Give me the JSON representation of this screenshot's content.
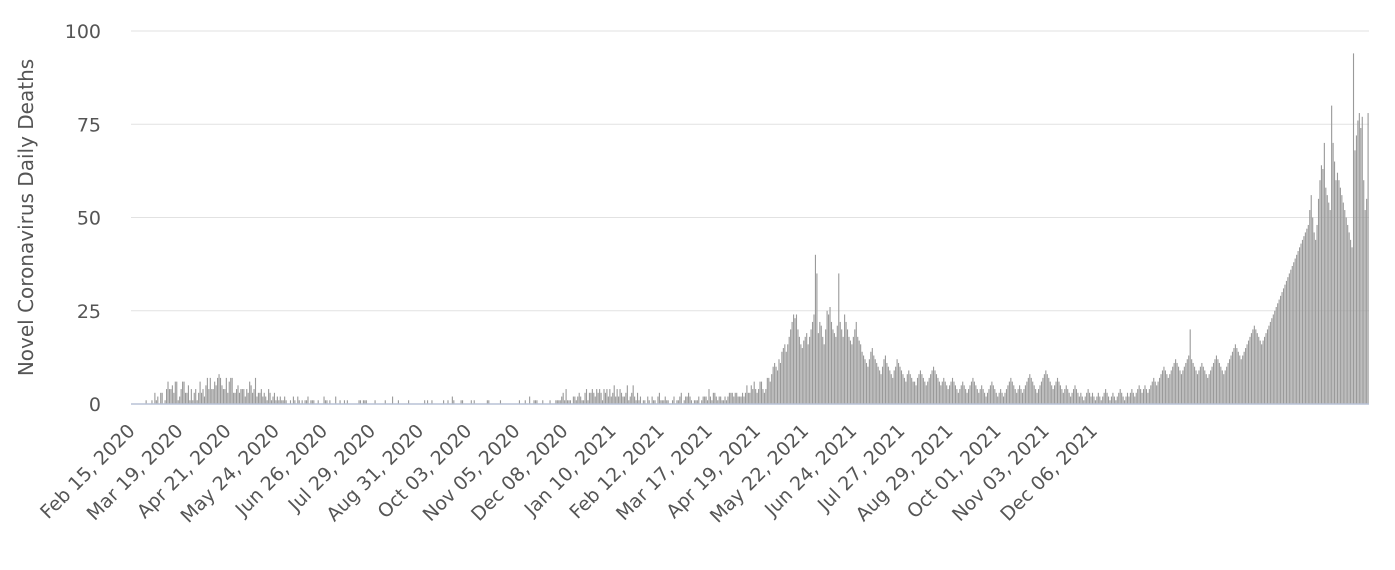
{
  "chart_data": {
    "type": "bar",
    "title": "",
    "xlabel": "",
    "ylabel": "Novel Coronavirus Daily Deaths",
    "ylim": [
      0,
      100
    ],
    "y_ticks": [
      "0",
      "25",
      "50",
      "75",
      "100"
    ],
    "x_tick_labels": [
      "Feb 15, 2020",
      "Mar 19, 2020",
      "Apr 21, 2020",
      "May 24, 2020",
      "Jun 26, 2020",
      "Jul 29, 2020",
      "Aug 31, 2020",
      "Oct 03, 2020",
      "Nov 05, 2020",
      "Dec 08, 2020",
      "Jan 10, 2021",
      "Feb 12, 2021",
      "Mar 17, 2021",
      "Apr 19, 2021",
      "May 22, 2021",
      "Jun 24, 2021",
      "Jul 27, 2021",
      "Aug 29, 2021",
      "Oct 01, 2021",
      "Nov 03, 2021",
      "Dec 06, 2021"
    ],
    "grid": true,
    "legend": "none",
    "bar_color": "#9a9a9a",
    "x_start": "Feb 15, 2020",
    "series": [
      {
        "values": [
          0,
          0,
          0,
          0,
          0,
          0,
          0,
          0,
          0,
          0,
          1,
          0,
          0,
          0,
          1,
          0,
          3,
          1,
          2,
          0,
          3,
          3,
          0,
          1,
          4,
          6,
          4,
          4,
          5,
          3,
          6,
          6,
          1,
          2,
          4,
          6,
          6,
          3,
          3,
          5,
          1,
          4,
          1,
          3,
          4,
          1,
          3,
          6,
          3,
          4,
          2,
          5,
          7,
          4,
          7,
          4,
          4,
          6,
          5,
          7,
          8,
          7,
          5,
          4,
          4,
          7,
          3,
          6,
          7,
          7,
          3,
          3,
          4,
          5,
          3,
          4,
          4,
          4,
          2,
          4,
          3,
          6,
          5,
          3,
          4,
          7,
          2,
          3,
          3,
          4,
          2,
          3,
          2,
          1,
          4,
          3,
          1,
          2,
          3,
          1,
          2,
          1,
          2,
          1,
          1,
          2,
          1,
          0,
          0,
          1,
          0,
          2,
          1,
          0,
          2,
          1,
          0,
          1,
          0,
          1,
          1,
          2,
          0,
          1,
          1,
          1,
          0,
          0,
          1,
          0,
          0,
          0,
          2,
          1,
          1,
          0,
          1,
          0,
          0,
          0,
          2,
          0,
          0,
          1,
          0,
          0,
          1,
          0,
          1,
          0,
          0,
          0,
          0,
          0,
          0,
          0,
          1,
          1,
          0,
          1,
          1,
          1,
          0,
          0,
          0,
          0,
          0,
          1,
          0,
          0,
          0,
          0,
          0,
          0,
          1,
          0,
          0,
          0,
          0,
          2,
          0,
          0,
          0,
          1,
          0,
          0,
          0,
          0,
          0,
          0,
          1,
          0,
          0,
          0,
          0,
          0,
          0,
          0,
          0,
          0,
          0,
          1,
          0,
          1,
          0,
          0,
          1,
          0,
          0,
          0,
          0,
          0,
          0,
          0,
          1,
          0,
          0,
          1,
          0,
          0,
          2,
          1,
          0,
          0,
          0,
          0,
          1,
          1,
          0,
          0,
          0,
          0,
          0,
          1,
          0,
          1,
          0,
          0,
          0,
          0,
          0,
          0,
          0,
          0,
          1,
          1,
          0,
          0,
          0,
          0,
          0,
          0,
          0,
          1,
          0,
          0,
          0,
          0,
          0,
          0,
          0,
          0,
          0,
          0,
          0,
          0,
          1,
          0,
          0,
          0,
          1,
          0,
          0,
          2,
          0,
          0,
          1,
          1,
          1,
          0,
          0,
          0,
          1,
          0,
          0,
          0,
          0,
          1,
          0,
          0,
          0,
          1,
          1,
          1,
          1,
          2,
          3,
          1,
          4,
          1,
          1,
          1,
          0,
          2,
          2,
          1,
          2,
          3,
          2,
          1,
          1,
          3,
          4,
          1,
          3,
          3,
          4,
          3,
          2,
          4,
          3,
          4,
          3,
          1,
          4,
          3,
          4,
          2,
          4,
          2,
          3,
          5,
          2,
          4,
          2,
          4,
          3,
          2,
          2,
          3,
          5,
          1,
          2,
          3,
          5,
          2,
          1,
          3,
          1,
          2,
          0,
          1,
          1,
          0,
          2,
          1,
          0,
          2,
          1,
          1,
          0,
          2,
          3,
          1,
          1,
          1,
          2,
          1,
          1,
          0,
          0,
          1,
          2,
          0,
          1,
          1,
          2,
          3,
          0,
          1,
          2,
          2,
          3,
          2,
          1,
          0,
          1,
          1,
          1,
          2,
          0,
          1,
          2,
          2,
          2,
          1,
          4,
          2,
          1,
          3,
          3,
          2,
          1,
          2,
          2,
          1,
          1,
          2,
          1,
          2,
          3,
          3,
          3,
          2,
          3,
          3,
          2,
          2,
          2,
          3,
          2,
          3,
          5,
          3,
          3,
          5,
          4,
          6,
          4,
          3,
          4,
          6,
          6,
          4,
          3,
          4,
          7,
          7,
          6,
          8,
          10,
          11,
          10,
          9,
          12,
          11,
          14,
          15,
          16,
          14,
          16,
          18,
          20,
          22,
          24,
          23,
          24,
          20,
          18,
          16,
          15,
          17,
          18,
          19,
          16,
          18,
          20,
          22,
          24,
          40,
          35,
          19,
          22,
          21,
          18,
          16,
          20,
          25,
          24,
          26,
          22,
          20,
          19,
          18,
          21,
          35,
          22,
          20,
          18,
          24,
          22,
          20,
          18,
          17,
          16,
          18,
          20,
          22,
          18,
          17,
          16,
          14,
          13,
          12,
          11,
          10,
          12,
          14,
          15,
          13,
          12,
          11,
          10,
          9,
          8,
          10,
          12,
          13,
          11,
          10,
          9,
          8,
          7,
          9,
          10,
          12,
          11,
          10,
          9,
          8,
          7,
          6,
          8,
          9,
          8,
          7,
          6,
          6,
          5,
          7,
          8,
          9,
          8,
          7,
          6,
          5,
          6,
          7,
          8,
          9,
          10,
          9,
          8,
          7,
          6,
          5,
          6,
          7,
          6,
          5,
          4,
          5,
          6,
          7,
          6,
          5,
          4,
          3,
          4,
          5,
          6,
          5,
          4,
          3,
          4,
          5,
          6,
          7,
          6,
          5,
          4,
          3,
          4,
          5,
          4,
          3,
          2,
          3,
          4,
          5,
          6,
          5,
          4,
          3,
          2,
          3,
          4,
          3,
          2,
          3,
          4,
          5,
          6,
          7,
          6,
          5,
          4,
          3,
          4,
          5,
          4,
          3,
          4,
          5,
          6,
          7,
          8,
          7,
          6,
          5,
          4,
          3,
          4,
          5,
          6,
          7,
          8,
          9,
          8,
          7,
          6,
          5,
          4,
          5,
          6,
          7,
          6,
          5,
          4,
          3,
          4,
          5,
          4,
          3,
          2,
          3,
          4,
          5,
          4,
          3,
          2,
          3,
          2,
          1,
          2,
          3,
          4,
          3,
          2,
          3,
          2,
          1,
          2,
          3,
          2,
          1,
          2,
          3,
          4,
          3,
          2,
          1,
          2,
          3,
          2,
          1,
          2,
          3,
          4,
          3,
          2,
          1,
          2,
          3,
          2,
          3,
          4,
          3,
          2,
          3,
          4,
          5,
          4,
          3,
          4,
          5,
          4,
          3,
          4,
          5,
          6,
          7,
          6,
          5,
          6,
          7,
          8,
          9,
          10,
          9,
          8,
          7,
          8,
          9,
          10,
          11,
          12,
          11,
          10,
          9,
          8,
          9,
          10,
          11,
          12,
          13,
          20,
          12,
          11,
          10,
          9,
          8,
          9,
          10,
          11,
          10,
          9,
          8,
          7,
          8,
          9,
          10,
          11,
          12,
          13,
          12,
          11,
          10,
          9,
          8,
          9,
          10,
          11,
          12,
          13,
          14,
          15,
          16,
          15,
          14,
          13,
          12,
          13,
          14,
          15,
          16,
          17,
          18,
          19,
          20,
          21,
          20,
          19,
          18,
          17,
          16,
          17,
          18,
          19,
          20,
          21,
          22,
          23,
          24,
          25,
          26,
          27,
          28,
          29,
          30,
          31,
          32,
          33,
          34,
          35,
          36,
          37,
          38,
          39,
          40,
          41,
          42,
          43,
          44,
          45,
          46,
          47,
          48,
          52,
          56,
          50,
          46,
          44,
          48,
          55,
          60,
          64,
          63,
          70,
          58,
          56,
          54,
          52,
          80,
          70,
          65,
          60,
          62,
          60,
          58,
          56,
          54,
          52,
          50,
          48,
          46,
          44,
          42,
          94,
          68,
          72,
          76,
          78,
          74,
          77,
          60,
          52,
          55,
          78
        ]
      }
    ]
  }
}
